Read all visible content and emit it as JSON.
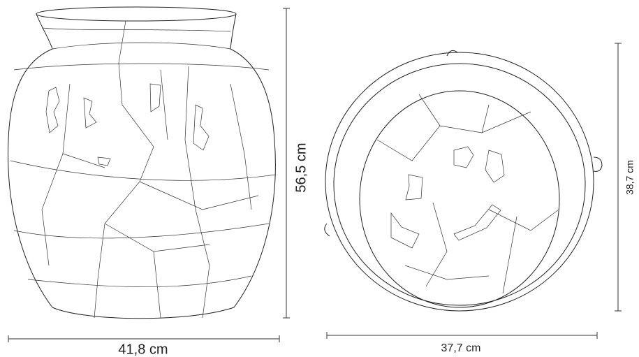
{
  "views": [
    {
      "width_label": "41,8 cm",
      "height_label": "56,5 cm"
    },
    {
      "width_label": "37,7 cm",
      "height_label": "38,7 cm"
    }
  ]
}
